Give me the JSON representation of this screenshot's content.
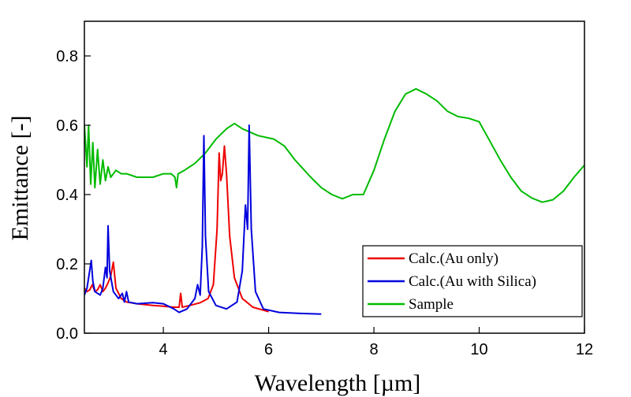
{
  "chart_data": {
    "type": "line",
    "xlabel": "Wavelength [µm]",
    "ylabel": "Emittance [-]",
    "xlim": [
      2.5,
      12
    ],
    "ylim": [
      0,
      0.9
    ],
    "xticks": [
      4,
      6,
      8,
      10,
      12
    ],
    "yticks": [
      0.0,
      0.2,
      0.4,
      0.6,
      0.8
    ],
    "xtick_labels": [
      "4",
      "6",
      "8",
      "10",
      "12"
    ],
    "ytick_labels": [
      "0.0",
      "0.2",
      "0.4",
      "0.6",
      "0.8"
    ],
    "grid": false,
    "legend_position": "bottom-right",
    "series": [
      {
        "name": "Calc.(Au only)",
        "color": "#ee0000",
        "points": [
          [
            2.5,
            0.13
          ],
          [
            2.55,
            0.12
          ],
          [
            2.6,
            0.125
          ],
          [
            2.65,
            0.14
          ],
          [
            2.7,
            0.12
          ],
          [
            2.75,
            0.125
          ],
          [
            2.8,
            0.14
          ],
          [
            2.85,
            0.12
          ],
          [
            2.9,
            0.13
          ],
          [
            2.95,
            0.145
          ],
          [
            3.0,
            0.165
          ],
          [
            3.05,
            0.205
          ],
          [
            3.1,
            0.13
          ],
          [
            3.2,
            0.1
          ],
          [
            3.3,
            0.09
          ],
          [
            3.5,
            0.085
          ],
          [
            3.8,
            0.08
          ],
          [
            4.0,
            0.078
          ],
          [
            4.2,
            0.075
          ],
          [
            4.3,
            0.075
          ],
          [
            4.33,
            0.115
          ],
          [
            4.36,
            0.075
          ],
          [
            4.5,
            0.08
          ],
          [
            4.7,
            0.088
          ],
          [
            4.85,
            0.1
          ],
          [
            4.95,
            0.14
          ],
          [
            5.02,
            0.3
          ],
          [
            5.06,
            0.52
          ],
          [
            5.09,
            0.44
          ],
          [
            5.12,
            0.46
          ],
          [
            5.16,
            0.54
          ],
          [
            5.2,
            0.46
          ],
          [
            5.26,
            0.28
          ],
          [
            5.35,
            0.16
          ],
          [
            5.5,
            0.1
          ],
          [
            5.7,
            0.075
          ],
          [
            6.0,
            0.062
          ]
        ]
      },
      {
        "name": "Calc.(Au with Silica)",
        "color": "#0000dd",
        "points": [
          [
            2.5,
            0.11
          ],
          [
            2.55,
            0.13
          ],
          [
            2.6,
            0.18
          ],
          [
            2.63,
            0.21
          ],
          [
            2.66,
            0.15
          ],
          [
            2.7,
            0.12
          ],
          [
            2.8,
            0.11
          ],
          [
            2.85,
            0.13
          ],
          [
            2.9,
            0.19
          ],
          [
            2.93,
            0.16
          ],
          [
            2.95,
            0.31
          ],
          [
            2.98,
            0.18
          ],
          [
            3.05,
            0.12
          ],
          [
            3.15,
            0.1
          ],
          [
            3.22,
            0.115
          ],
          [
            3.26,
            0.09
          ],
          [
            3.3,
            0.12
          ],
          [
            3.34,
            0.09
          ],
          [
            3.5,
            0.085
          ],
          [
            3.8,
            0.088
          ],
          [
            4.0,
            0.085
          ],
          [
            4.2,
            0.07
          ],
          [
            4.3,
            0.06
          ],
          [
            4.45,
            0.07
          ],
          [
            4.6,
            0.1
          ],
          [
            4.65,
            0.14
          ],
          [
            4.7,
            0.11
          ],
          [
            4.74,
            0.25
          ],
          [
            4.77,
            0.57
          ],
          [
            4.8,
            0.28
          ],
          [
            4.86,
            0.12
          ],
          [
            5.0,
            0.08
          ],
          [
            5.2,
            0.07
          ],
          [
            5.4,
            0.09
          ],
          [
            5.5,
            0.18
          ],
          [
            5.56,
            0.37
          ],
          [
            5.6,
            0.3
          ],
          [
            5.63,
            0.6
          ],
          [
            5.67,
            0.3
          ],
          [
            5.75,
            0.12
          ],
          [
            5.9,
            0.07
          ],
          [
            6.2,
            0.06
          ],
          [
            6.6,
            0.057
          ],
          [
            7.0,
            0.055
          ]
        ]
      },
      {
        "name": "Sample",
        "color": "#00bb00",
        "points": [
          [
            2.5,
            0.6
          ],
          [
            2.55,
            0.48
          ],
          [
            2.58,
            0.6
          ],
          [
            2.62,
            0.43
          ],
          [
            2.66,
            0.55
          ],
          [
            2.7,
            0.42
          ],
          [
            2.75,
            0.53
          ],
          [
            2.8,
            0.43
          ],
          [
            2.85,
            0.5
          ],
          [
            2.9,
            0.44
          ],
          [
            2.95,
            0.48
          ],
          [
            3.0,
            0.45
          ],
          [
            3.1,
            0.47
          ],
          [
            3.2,
            0.46
          ],
          [
            3.3,
            0.46
          ],
          [
            3.5,
            0.45
          ],
          [
            3.8,
            0.45
          ],
          [
            4.0,
            0.46
          ],
          [
            4.15,
            0.46
          ],
          [
            4.22,
            0.45
          ],
          [
            4.25,
            0.42
          ],
          [
            4.28,
            0.46
          ],
          [
            4.4,
            0.47
          ],
          [
            4.6,
            0.49
          ],
          [
            4.8,
            0.52
          ],
          [
            5.0,
            0.56
          ],
          [
            5.2,
            0.59
          ],
          [
            5.35,
            0.605
          ],
          [
            5.5,
            0.59
          ],
          [
            5.8,
            0.57
          ],
          [
            6.1,
            0.56
          ],
          [
            6.3,
            0.54
          ],
          [
            6.5,
            0.5
          ],
          [
            6.8,
            0.45
          ],
          [
            7.0,
            0.42
          ],
          [
            7.2,
            0.4
          ],
          [
            7.4,
            0.388
          ],
          [
            7.6,
            0.4
          ],
          [
            7.8,
            0.4
          ],
          [
            8.0,
            0.47
          ],
          [
            8.2,
            0.56
          ],
          [
            8.4,
            0.64
          ],
          [
            8.6,
            0.69
          ],
          [
            8.8,
            0.705
          ],
          [
            9.0,
            0.69
          ],
          [
            9.2,
            0.67
          ],
          [
            9.4,
            0.64
          ],
          [
            9.6,
            0.625
          ],
          [
            9.8,
            0.62
          ],
          [
            10.0,
            0.61
          ],
          [
            10.2,
            0.555
          ],
          [
            10.4,
            0.5
          ],
          [
            10.6,
            0.45
          ],
          [
            10.8,
            0.41
          ],
          [
            11.0,
            0.39
          ],
          [
            11.2,
            0.378
          ],
          [
            11.4,
            0.385
          ],
          [
            11.6,
            0.41
          ],
          [
            11.8,
            0.45
          ],
          [
            12.0,
            0.485
          ]
        ]
      }
    ]
  }
}
